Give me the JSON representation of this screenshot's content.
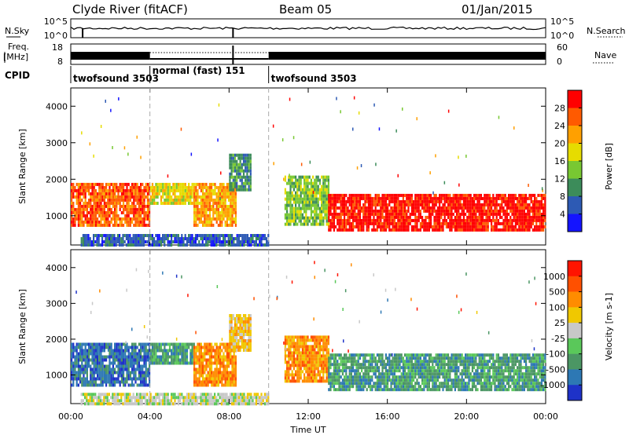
{
  "header": {
    "station": "Clyde River (fitACF)",
    "beam": "Beam 05",
    "date": "01/Jan/2015"
  },
  "side_labels": {
    "nsky": "N.Sky",
    "nsky_ticks": [
      "10^5",
      "10^0"
    ],
    "nsearch": "N.Search",
    "nsearch_ticks": [
      "10^5",
      "10^0"
    ],
    "freq": "Freq.",
    "freq_unit": "[MHz]",
    "freq_ticks": [
      "18",
      "8"
    ],
    "nave": "Nave",
    "nave_ticks": [
      "60",
      "0"
    ],
    "cpid": "CPID"
  },
  "cpid_segments": [
    {
      "label": "twofsound 3503",
      "start_hour": 0.0,
      "end_hour": 4.0,
      "dotted": false
    },
    {
      "label": "normal (fast) 151",
      "start_hour": 4.0,
      "end_hour": 10.0,
      "dotted": true
    },
    {
      "label": "twofsound 3503",
      "start_hour": 10.0,
      "end_hour": 24.0,
      "dotted": false
    }
  ],
  "chart_data": [
    {
      "type": "heatmap",
      "name": "power",
      "ylabel": "Slant Range [km]",
      "ylim": [
        200,
        4500
      ],
      "yticks": [
        "1000",
        "2000",
        "3000",
        "4000"
      ],
      "ytick_values": [
        1000,
        2000,
        3000,
        4000
      ],
      "colorbar": {
        "label": "Power [dB]",
        "ticks": [
          "4",
          "8",
          "12",
          "16",
          "20",
          "24",
          "28"
        ],
        "colors": [
          "#1414ff",
          "#2d5ab4",
          "#3c8c5a",
          "#78c832",
          "#e6dc00",
          "#ffa000",
          "#ff5a00",
          "#ff0000"
        ]
      },
      "regions": [
        {
          "x": [
            0.0,
            4.0
          ],
          "y": [
            700,
            1900
          ],
          "level": 6
        },
        {
          "x": [
            4.0,
            6.2
          ],
          "y": [
            1300,
            1900
          ],
          "level": 4
        },
        {
          "x": [
            6.2,
            8.3
          ],
          "y": [
            700,
            1900
          ],
          "level": 5
        },
        {
          "x": [
            8.0,
            9.1
          ],
          "y": [
            1700,
            2700
          ],
          "level": 2
        },
        {
          "x": [
            10.8,
            13.0
          ],
          "y": [
            800,
            2100
          ],
          "level": 3
        },
        {
          "x": [
            13.0,
            24.0
          ],
          "y": [
            600,
            1600
          ],
          "level": 7
        },
        {
          "x": [
            0.5,
            10.0
          ],
          "y": [
            200,
            500
          ],
          "level": 1
        }
      ]
    },
    {
      "type": "heatmap",
      "name": "velocity",
      "ylabel": "Slant Range [km]",
      "xlabel": "Time UT",
      "xlim": [
        0,
        24
      ],
      "xticks": [
        "00:00",
        "04:00",
        "08:00",
        "12:00",
        "16:00",
        "20:00",
        "00:00"
      ],
      "ylim": [
        200,
        4500
      ],
      "yticks": [
        "1000",
        "2000",
        "3000",
        "4000"
      ],
      "ytick_values": [
        1000,
        2000,
        3000,
        4000
      ],
      "colorbar": {
        "label": "Velocity [m s-1]",
        "ticks": [
          "1000",
          "500",
          "100",
          "25",
          "-25",
          "-100",
          "-500",
          "-1000"
        ],
        "colors": [
          "#1e32c8",
          "#2d78b4",
          "#4b9664",
          "#5ac85a",
          "#c8c8c8",
          "#f0c800",
          "#ff8c00",
          "#ff5000",
          "#ff1400"
        ]
      },
      "regions": [
        {
          "x": [
            0.0,
            4.0
          ],
          "y": [
            700,
            1900
          ],
          "level": 1
        },
        {
          "x": [
            4.0,
            6.2
          ],
          "y": [
            1300,
            1900
          ],
          "level": 2
        },
        {
          "x": [
            6.2,
            8.3
          ],
          "y": [
            700,
            1900
          ],
          "level": 6
        },
        {
          "x": [
            8.0,
            9.1
          ],
          "y": [
            1700,
            2700
          ],
          "level": 5
        },
        {
          "x": [
            10.8,
            13.0
          ],
          "y": [
            800,
            2100
          ],
          "level": 6
        },
        {
          "x": [
            13.0,
            24.0
          ],
          "y": [
            600,
            1600
          ],
          "level": 2
        },
        {
          "x": [
            0.5,
            10.0
          ],
          "y": [
            200,
            500
          ],
          "level": 4
        }
      ]
    }
  ]
}
